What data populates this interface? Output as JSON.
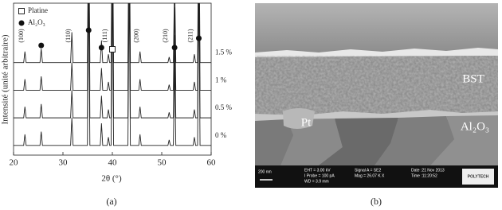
{
  "chart_data": {
    "type": "line",
    "xlabel": "2θ (°)",
    "ylabel": "Intensité (unité arbitraire)",
    "xlim": [
      20,
      60
    ],
    "xticks": [
      20,
      30,
      40,
      50,
      60
    ],
    "ylim": [
      0,
      5.5
    ],
    "x": [
      20,
      22.05,
      22.3,
      22.55,
      25.35,
      25.6,
      25.85,
      31.55,
      31.8,
      32.05,
      34.95,
      35.2,
      35.45,
      37.55,
      37.8,
      38.05,
      38.95,
      39.2,
      39.45,
      39.75,
      40.0,
      40.25,
      43.15,
      43.4,
      43.65,
      45.35,
      45.6,
      45.85,
      51.25,
      51.5,
      51.75,
      52.35,
      52.6,
      52.85,
      56.35,
      56.6,
      56.85,
      57.25,
      57.5,
      57.75,
      60
    ],
    "series": [
      {
        "name": "0 %",
        "color": "#222222",
        "values": [
          0.35,
          0.35,
          0.75,
          0.35,
          0.35,
          0.85,
          0.35,
          0.35,
          1.35,
          0.35,
          0.35,
          6.35,
          0.35,
          0.35,
          1.15,
          0.35,
          0.35,
          0.65,
          0.35,
          0.35,
          6.35,
          0.35,
          0.35,
          6.35,
          0.35,
          0.35,
          0.75,
          0.35,
          0.35,
          0.55,
          0.35,
          0.35,
          3.35,
          0.35,
          0.35,
          0.65,
          0.35,
          0.35,
          6.35,
          0.35,
          0.35
        ]
      },
      {
        "name": "0.5 %",
        "color": "#222222",
        "values": [
          1.35,
          1.35,
          1.75,
          1.35,
          1.35,
          1.85,
          1.35,
          1.35,
          2.35,
          1.35,
          1.35,
          7.35,
          1.35,
          1.35,
          2.15,
          1.35,
          1.35,
          1.65,
          1.35,
          1.35,
          7.35,
          1.35,
          1.35,
          7.35,
          1.35,
          1.35,
          1.75,
          1.35,
          1.35,
          1.55,
          1.35,
          1.35,
          4.35,
          1.35,
          1.35,
          1.65,
          1.35,
          1.35,
          7.35,
          1.35,
          1.35
        ]
      },
      {
        "name": "1 %",
        "color": "#222222",
        "values": [
          2.35,
          2.35,
          2.75,
          2.35,
          2.35,
          2.85,
          2.35,
          2.35,
          3.35,
          2.35,
          2.35,
          8.35,
          2.35,
          2.35,
          3.15,
          2.35,
          2.35,
          2.65,
          2.35,
          2.35,
          8.35,
          2.35,
          2.35,
          8.35,
          2.35,
          2.35,
          2.75,
          2.35,
          2.35,
          2.55,
          2.35,
          2.35,
          5.35,
          2.35,
          2.35,
          2.65,
          2.35,
          2.35,
          8.35,
          2.35,
          2.35
        ]
      },
      {
        "name": "1.5 %",
        "color": "#222222",
        "values": [
          3.35,
          3.35,
          3.75,
          3.35,
          3.35,
          3.85,
          3.35,
          3.35,
          4.45,
          3.35,
          3.35,
          9.35,
          3.35,
          3.35,
          4.15,
          3.35,
          3.35,
          3.65,
          3.35,
          3.35,
          9.35,
          3.35,
          3.35,
          9.35,
          3.35,
          3.35,
          3.75,
          3.35,
          3.35,
          3.55,
          3.35,
          3.35,
          6.35,
          3.35,
          3.35,
          3.65,
          3.35,
          3.35,
          9.35,
          3.35,
          3.35
        ]
      }
    ],
    "peak_labels": [
      {
        "text": "(100)",
        "x": 22.3
      },
      {
        "text": "(110)",
        "x": 31.8
      },
      {
        "text": "(111)",
        "x": 39.2
      },
      {
        "text": "(200)",
        "x": 45.6
      },
      {
        "text": "(210)",
        "x": 51.5
      },
      {
        "text": "(211)",
        "x": 56.6
      }
    ],
    "marker_legend": [
      {
        "name": "Platine",
        "shape": "square"
      },
      {
        "name": "Al₂O₃",
        "shape": "circle"
      }
    ],
    "markers": [
      {
        "shape": "circle",
        "x": 25.6,
        "y": 3.97
      },
      {
        "shape": "circle",
        "x": 35.2,
        "y": 4.52
      },
      {
        "shape": "circle",
        "x": 37.8,
        "y": 3.89
      },
      {
        "shape": "square",
        "x": 40.0,
        "y": 3.83
      },
      {
        "shape": "circle",
        "x": 52.6,
        "y": 3.89
      },
      {
        "shape": "circle",
        "x": 57.5,
        "y": 4.23
      }
    ]
  },
  "figure": {
    "captions": [
      "(a)",
      "(b)"
    ],
    "sem": {
      "labels": [
        "BST",
        "Pt",
        "Al₂O₃"
      ],
      "info": [
        "200 nm",
        "EHT = 3.00 kV",
        "I Probe = 100 pA",
        "WD = 3.9 mm",
        "Signal A = SE2",
        "Mag = 26.07 K X",
        "Date :21 Nov 2013",
        "Time :11:20:52",
        "POLYTECH"
      ]
    }
  }
}
